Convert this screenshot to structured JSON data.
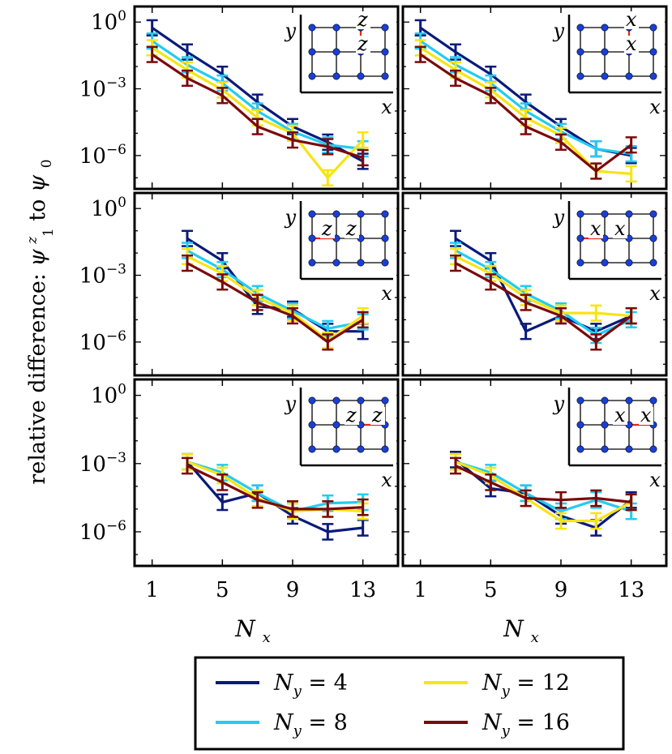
{
  "figure": {
    "ylabel_prefix": "relative difference: ",
    "ylabel_psi1": "ψ",
    "ylabel_psi1_sup": "z",
    "ylabel_psi1_sub": "1",
    "ylabel_mid": " to ",
    "ylabel_psi0": "ψ",
    "ylabel_psi0_sub": "0",
    "xlabel_main": "N",
    "xlabel_sub": "x"
  },
  "colors": {
    "Ny=4": "#0a1a7a",
    "Ny=8": "#22ccf2",
    "Ny=12": "#f7e414",
    "Ny=16": "#7a0a0a",
    "inset_bond": "#e8231a",
    "inset_site": "#1a3fd6"
  },
  "legend": {
    "entries": [
      {
        "main": "N",
        "sub": "y",
        "value": " = 4",
        "series": "Ny=4"
      },
      {
        "main": "N",
        "sub": "y",
        "value": " = 12",
        "series": "Ny=12"
      },
      {
        "main": "N",
        "sub": "y",
        "value": " = 8",
        "series": "Ny=8"
      },
      {
        "main": "N",
        "sub": "y",
        "value": " = 16",
        "series": "Ny=16"
      }
    ]
  },
  "chart_data": [
    {
      "type": "line",
      "panel": "row1-left",
      "yscale": "log",
      "ylim_exp": [
        -7.5,
        0.7
      ],
      "xlim": [
        0,
        15
      ],
      "xticks": [
        1,
        5,
        9,
        13
      ],
      "yticks_exp": [
        0,
        -3,
        -6
      ],
      "inset": {
        "labels": [
          "z",
          "z"
        ],
        "axes": [
          "y",
          "x"
        ],
        "variant": "vertical"
      },
      "series": [
        {
          "name": "Ny=4",
          "x": [
            1,
            3,
            5,
            7,
            9,
            11,
            13
          ],
          "y": [
            0.55,
            0.045,
            0.0045,
            0.00025,
            2e-05,
            4e-06,
            5.5e-07
          ]
        },
        {
          "name": "Ny=8",
          "x": [
            1,
            3,
            5,
            7,
            9,
            11,
            13
          ],
          "y": [
            0.14,
            0.012,
            0.0018,
            0.0001,
            1.2e-05,
            3e-06,
            2e-06
          ]
        },
        {
          "name": "Ny=12",
          "x": [
            1,
            3,
            5,
            7,
            9,
            11,
            13
          ],
          "y": [
            0.07,
            0.007,
            0.0009,
            5e-05,
            1e-05,
            1e-07,
            5e-06
          ]
        },
        {
          "name": "Ny=16",
          "x": [
            1,
            3,
            5,
            7,
            9,
            11,
            13
          ],
          "y": [
            0.035,
            0.003,
            0.0005,
            2e-05,
            5e-06,
            2.5e-06,
            8e-07
          ]
        }
      ]
    },
    {
      "type": "line",
      "panel": "row1-right",
      "yscale": "log",
      "ylim_exp": [
        -7.5,
        0.7
      ],
      "xlim": [
        0,
        15
      ],
      "xticks": [
        1,
        5,
        9,
        13
      ],
      "yticks_exp": [
        0,
        -3,
        -6
      ],
      "inset": {
        "labels": [
          "x",
          "x"
        ],
        "axes": [
          "y",
          "x"
        ],
        "variant": "vertical"
      },
      "series": [
        {
          "name": "Ny=4",
          "x": [
            1,
            3,
            5,
            7,
            9,
            11,
            13
          ],
          "y": [
            0.55,
            0.045,
            0.0045,
            0.00025,
            2e-05,
            2e-06,
            1e-06
          ]
        },
        {
          "name": "Ny=8",
          "x": [
            1,
            3,
            5,
            7,
            9,
            11,
            13
          ],
          "y": [
            0.14,
            0.012,
            0.0018,
            0.0001,
            1.2e-05,
            2e-06,
            1.2e-06
          ]
        },
        {
          "name": "Ny=12",
          "x": [
            1,
            3,
            5,
            7,
            9,
            11,
            13
          ],
          "y": [
            0.07,
            0.007,
            0.0009,
            5e-05,
            8e-06,
            2e-07,
            1.5e-07
          ]
        },
        {
          "name": "Ny=16",
          "x": [
            1,
            3,
            5,
            7,
            9,
            11,
            13
          ],
          "y": [
            0.035,
            0.003,
            0.0005,
            2e-05,
            4e-06,
            2e-07,
            3e-06
          ]
        }
      ]
    },
    {
      "type": "line",
      "panel": "row2-left",
      "yscale": "log",
      "ylim_exp": [
        -7.5,
        0.7
      ],
      "xlim": [
        0,
        15
      ],
      "xticks": [
        1,
        5,
        9,
        13
      ],
      "yticks_exp": [
        0,
        -3,
        -6
      ],
      "inset": {
        "labels": [
          "z",
          "z"
        ],
        "axes": [
          "y",
          "x"
        ],
        "variant": "horizontal-left"
      },
      "series": [
        {
          "name": "Ny=4",
          "x": [
            3,
            5,
            7,
            9,
            11,
            13
          ],
          "y": [
            0.045,
            0.0045,
            4e-05,
            3e-05,
            3e-06,
            3e-06
          ]
        },
        {
          "name": "Ny=8",
          "x": [
            3,
            5,
            7,
            9,
            11,
            13
          ],
          "y": [
            0.013,
            0.0018,
            0.00015,
            2.5e-05,
            4e-06,
            8e-06
          ]
        },
        {
          "name": "Ny=12",
          "x": [
            3,
            5,
            7,
            9,
            11,
            13
          ],
          "y": [
            0.007,
            0.0012,
            0.0001,
            2e-05,
            1.2e-06,
            1.5e-05
          ]
        },
        {
          "name": "Ny=16",
          "x": [
            3,
            5,
            7,
            9,
            11,
            13
          ],
          "y": [
            0.0035,
            0.0005,
            6e-05,
            1.5e-05,
            1e-06,
            1e-05
          ]
        }
      ]
    },
    {
      "type": "line",
      "panel": "row2-right",
      "yscale": "log",
      "ylim_exp": [
        -7.5,
        0.7
      ],
      "xlim": [
        0,
        15
      ],
      "xticks": [
        1,
        5,
        9,
        13
      ],
      "yticks_exp": [
        0,
        -3,
        -6
      ],
      "inset": {
        "labels": [
          "x",
          "x"
        ],
        "axes": [
          "y",
          "x"
        ],
        "variant": "horizontal-left"
      },
      "series": [
        {
          "name": "Ny=4",
          "x": [
            3,
            5,
            7,
            9,
            11,
            13
          ],
          "y": [
            0.045,
            0.0045,
            3e-06,
            1.5e-05,
            3e-06,
            1.5e-05
          ]
        },
        {
          "name": "Ny=8",
          "x": [
            3,
            5,
            7,
            9,
            11,
            13
          ],
          "y": [
            0.013,
            0.0018,
            0.00015,
            2.5e-05,
            2e-06,
            1e-05
          ]
        },
        {
          "name": "Ny=12",
          "x": [
            3,
            5,
            7,
            9,
            11,
            13
          ],
          "y": [
            0.007,
            0.0012,
            0.0001,
            2e-05,
            2e-05,
            1.5e-05
          ]
        },
        {
          "name": "Ny=16",
          "x": [
            3,
            5,
            7,
            9,
            11,
            13
          ],
          "y": [
            0.0035,
            0.0005,
            6e-05,
            1.5e-05,
            1e-06,
            1.5e-05
          ]
        }
      ]
    },
    {
      "type": "line",
      "panel": "row3-left",
      "yscale": "log",
      "ylim_exp": [
        -7.5,
        0.7
      ],
      "xlim": [
        0,
        15
      ],
      "xticks": [
        1,
        5,
        9,
        13
      ],
      "yticks_exp": [
        0,
        -3,
        -6
      ],
      "inset": {
        "labels": [
          "z",
          "z"
        ],
        "axes": [
          "y",
          "x"
        ],
        "variant": "horizontal-right"
      },
      "series": [
        {
          "name": "Ny=4",
          "x": [
            3,
            5,
            7,
            9,
            11,
            13
          ],
          "y": [
            0.0012,
            2e-05,
            5e-05,
            5e-06,
            1e-06,
            1.5e-06
          ]
        },
        {
          "name": "Ny=8",
          "x": [
            3,
            5,
            7,
            9,
            11,
            13
          ],
          "y": [
            0.0012,
            0.0004,
            5e-05,
            8e-06,
            1.8e-05,
            2e-05
          ]
        },
        {
          "name": "Ny=12",
          "x": [
            3,
            5,
            7,
            9,
            11,
            13
          ],
          "y": [
            0.0012,
            0.0003,
            3e-05,
            8e-06,
            1e-05,
            8e-06
          ]
        },
        {
          "name": "Ny=16",
          "x": [
            3,
            5,
            7,
            9,
            11,
            13
          ],
          "y": [
            0.0008,
            0.00015,
            2.5e-05,
            1e-05,
            1e-05,
            1.2e-05
          ]
        }
      ]
    },
    {
      "type": "line",
      "panel": "row3-right",
      "yscale": "log",
      "ylim_exp": [
        -7.5,
        0.7
      ],
      "xlim": [
        0,
        15
      ],
      "xticks": [
        1,
        5,
        9,
        13
      ],
      "yticks_exp": [
        0,
        -3,
        -6
      ],
      "inset": {
        "labels": [
          "x",
          "x"
        ],
        "axes": [
          "y",
          "x"
        ],
        "variant": "horizontal-right"
      },
      "series": [
        {
          "name": "Ny=4",
          "x": [
            3,
            5,
            7,
            9,
            11,
            13
          ],
          "y": [
            0.0015,
            8e-05,
            5e-05,
            5e-06,
            1.5e-06,
            2.5e-05
          ]
        },
        {
          "name": "Ny=8",
          "x": [
            3,
            5,
            7,
            9,
            11,
            13
          ],
          "y": [
            0.0012,
            0.0004,
            5e-05,
            8e-06,
            2.5e-05,
            8e-06
          ]
        },
        {
          "name": "Ny=12",
          "x": [
            3,
            5,
            7,
            9,
            11,
            13
          ],
          "y": [
            0.0012,
            0.0003,
            3e-05,
            3e-06,
            3e-06,
            2e-05
          ]
        },
        {
          "name": "Ny=16",
          "x": [
            3,
            5,
            7,
            9,
            11,
            13
          ],
          "y": [
            0.0008,
            0.00015,
            3e-05,
            2.5e-05,
            3e-05,
            2e-05
          ]
        }
      ]
    }
  ]
}
